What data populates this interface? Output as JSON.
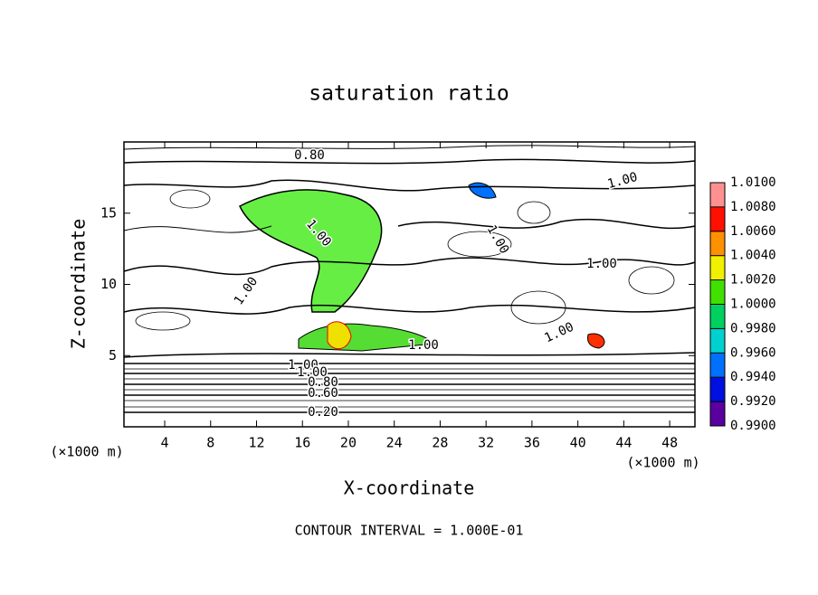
{
  "chart_data": {
    "type": "contour",
    "title": "saturation ratio",
    "x_label": "X-coordinate",
    "y_label": "Z-coordinate",
    "x_unit": "(×1000 m)",
    "y_unit": "(×1000 m)",
    "annotation": "CONTOUR INTERVAL = 1.000E-01",
    "xlim": [
      0.45,
      50.2
    ],
    "ylim": [
      0,
      20
    ],
    "xticks": [
      4,
      8,
      12,
      16,
      20,
      24,
      28,
      32,
      36,
      40,
      44,
      48
    ],
    "yticks": [
      5,
      10,
      15
    ],
    "contour_labels": [
      "0.80",
      "1.00",
      "1.00",
      "1.00",
      "1.00",
      "1.00",
      "1.00",
      "1.00",
      "1.00",
      "1.00",
      "0.80",
      "0.60",
      "0.40",
      "0.20"
    ],
    "colorbar": {
      "lim": [
        0.99,
        1.01
      ],
      "ticks": [
        {
          "value": 1.01,
          "label": "1.0100"
        },
        {
          "value": 1.008,
          "label": "1.0080"
        },
        {
          "value": 1.006,
          "label": "1.0060"
        },
        {
          "value": 1.004,
          "label": "1.0040"
        },
        {
          "value": 1.002,
          "label": "1.0020"
        },
        {
          "value": 1.0,
          "label": "1.0000"
        },
        {
          "value": 0.998,
          "label": "0.9980"
        },
        {
          "value": 0.996,
          "label": "0.9960"
        },
        {
          "value": 0.994,
          "label": "0.9940"
        },
        {
          "value": 0.992,
          "label": "0.9920"
        },
        {
          "value": 0.99,
          "label": "0.9900"
        }
      ],
      "colors": [
        "#5a00a0",
        "#0010e0",
        "#0070ff",
        "#00d0d0",
        "#00d060",
        "#40e000",
        "#f0f000",
        "#ff9000",
        "#ff1000",
        "#ff9090"
      ]
    }
  }
}
